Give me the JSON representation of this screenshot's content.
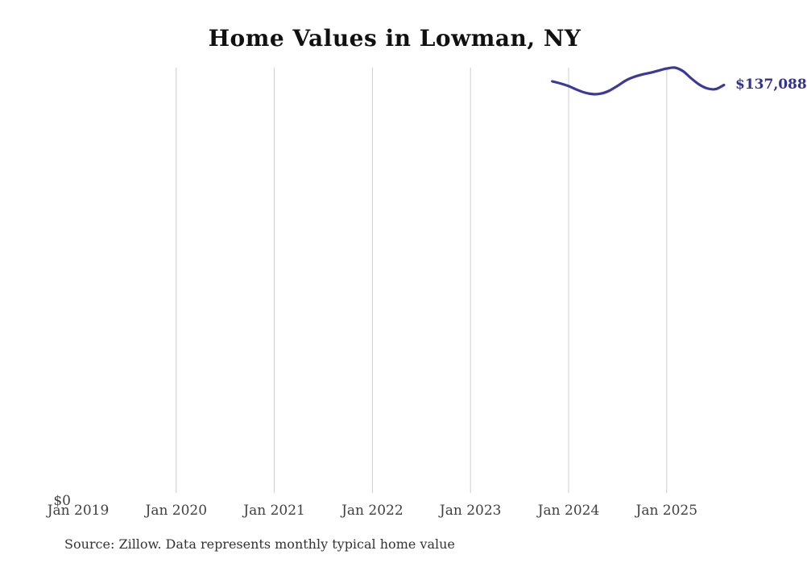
{
  "chart": {
    "title": "Home Values in Lowman, NY",
    "source_note": "Source: Zillow. Data represents monthly typical home value",
    "colors": {
      "line": "#3b3a9b",
      "end_label": "#33318f",
      "gridline": "#cccccc",
      "title_text": "#111111",
      "axis_text": "#404040"
    }
  },
  "chart_data": {
    "type": "line",
    "title": "Home Values in Lowman, NY",
    "xlabel": "",
    "ylabel": "",
    "y_zero_label": "$0",
    "end_label": "$137,088",
    "x_tick_labels": [
      "Jan 2019",
      "Jan 2020",
      "Jan 2021",
      "Jan 2022",
      "Jan 2023",
      "Jan 2024",
      "Jan 2025"
    ],
    "x_tick_months": [
      "2019-01",
      "2020-01",
      "2021-01",
      "2022-01",
      "2023-01",
      "2024-01",
      "2025-01"
    ],
    "gridline_months": [
      "2020-01",
      "2021-01",
      "2022-01",
      "2023-01",
      "2024-01",
      "2025-01"
    ],
    "grid": "vertical-only",
    "legend": "none",
    "x_axis_start_month": "2019-01",
    "months_per_pixel_note": "axis spans Jan 2019 onward, one year per 121.8px",
    "ylim": [
      0,
      142900
    ],
    "series": [
      {
        "name": "Monthly typical home value",
        "x": [
          "2023-11",
          "2023-12",
          "2024-01",
          "2024-02",
          "2024-03",
          "2024-04",
          "2024-05",
          "2024-06",
          "2024-07",
          "2024-08",
          "2024-09",
          "2024-10",
          "2024-11",
          "2024-12",
          "2025-01",
          "2025-02",
          "2025-03",
          "2025-04",
          "2025-05",
          "2025-06",
          "2025-07",
          "2025-08"
        ],
        "values": [
          138300,
          137600,
          136700,
          135500,
          134500,
          134000,
          134200,
          135200,
          136800,
          138600,
          139800,
          140600,
          141200,
          141900,
          142600,
          142900,
          141700,
          139300,
          137200,
          135900,
          135700,
          137088
        ]
      }
    ]
  }
}
